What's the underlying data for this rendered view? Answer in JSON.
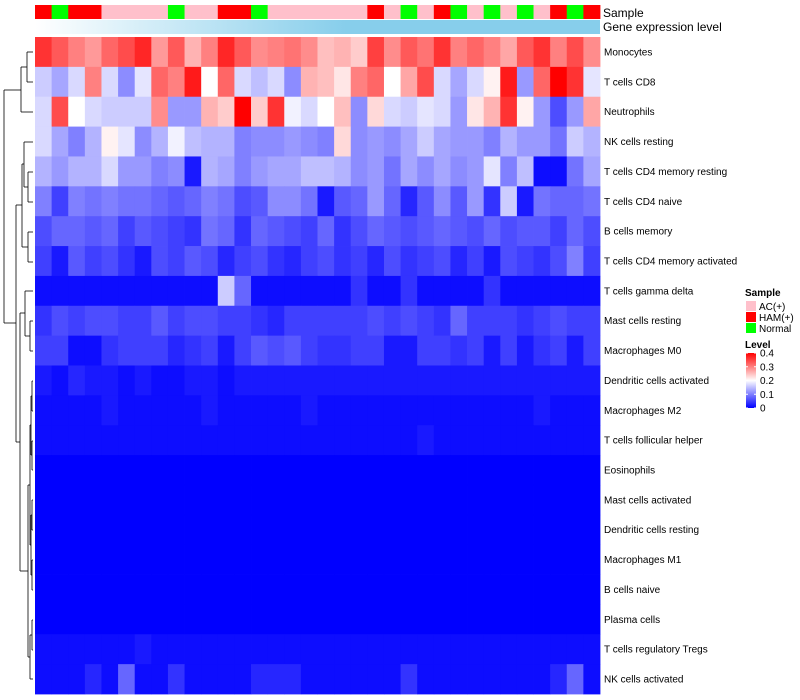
{
  "chart_data": {
    "type": "heatmap",
    "annotation_rows": [
      "Sample",
      "Gene expression level"
    ],
    "sample_groups": [
      "HAM(+)",
      "Normal",
      "HAM(+)",
      "HAM(+)",
      "AC(+)",
      "AC(+)",
      "AC(+)",
      "AC(+)",
      "Normal",
      "AC(+)",
      "AC(+)",
      "HAM(+)",
      "HAM(+)",
      "Normal",
      "AC(+)",
      "AC(+)",
      "AC(+)",
      "AC(+)",
      "AC(+)",
      "AC(+)",
      "HAM(+)",
      "AC(+)",
      "Normal",
      "AC(+)",
      "HAM(+)",
      "Normal",
      "AC(+)",
      "Normal",
      "AC(+)",
      "Normal",
      "AC(+)",
      "HAM(+)",
      "Normal",
      "HAM(+)"
    ],
    "rows": [
      "Monocytes",
      "T cells CD8",
      "Neutrophils",
      "NK cells resting",
      "T cells CD4 memory resting",
      "T cells CD4 naive",
      "B cells memory",
      "T cells CD4 memory activated",
      "T cells gamma delta",
      "Mast cells resting",
      "Macrophages M0",
      "Dendritic cells activated",
      "Macrophages M2",
      "T cells follicular helper",
      "Eosinophils",
      "Mast cells activated",
      "Dendritic cells resting",
      "Macrophages M1",
      "B cells naive",
      "Plasma cells",
      "T cells regulatory  Tregs",
      "NK cells activated"
    ],
    "values": [
      [
        0.36,
        0.33,
        0.3,
        0.28,
        0.32,
        0.34,
        0.37,
        0.28,
        0.33,
        0.26,
        0.3,
        0.37,
        0.33,
        0.29,
        0.3,
        0.31,
        0.29,
        0.25,
        0.26,
        0.24,
        0.35,
        0.29,
        0.33,
        0.31,
        0.36,
        0.3,
        0.32,
        0.3,
        0.27,
        0.33,
        0.36,
        0.3,
        0.34,
        0.29
      ],
      [
        0.16,
        0.13,
        0.17,
        0.3,
        0.17,
        0.11,
        0.18,
        0.32,
        0.3,
        0.38,
        0.2,
        0.32,
        0.17,
        0.15,
        0.17,
        0.11,
        0.26,
        0.25,
        0.22,
        0.3,
        0.32,
        0.2,
        0.27,
        0.34,
        0.17,
        0.13,
        0.17,
        0.21,
        0.38,
        0.12,
        0.32,
        0.4,
        0.36,
        0.18
      ],
      [
        0.17,
        0.34,
        0.2,
        0.17,
        0.16,
        0.16,
        0.16,
        0.29,
        0.12,
        0.12,
        0.26,
        0.24,
        0.4,
        0.24,
        0.36,
        0.19,
        0.17,
        0.2,
        0.25,
        0.11,
        0.23,
        0.17,
        0.16,
        0.18,
        0.17,
        0.12,
        0.22,
        0.26,
        0.36,
        0.21,
        0.12,
        0.06,
        0.12,
        0.27
      ],
      [
        0.17,
        0.13,
        0.1,
        0.14,
        0.21,
        0.18,
        0.11,
        0.14,
        0.19,
        0.15,
        0.14,
        0.14,
        0.1,
        0.11,
        0.11,
        0.12,
        0.11,
        0.1,
        0.23,
        0.11,
        0.12,
        0.11,
        0.13,
        0.16,
        0.13,
        0.12,
        0.12,
        0.1,
        0.14,
        0.12,
        0.12,
        0.09,
        0.16,
        0.14
      ],
      [
        0.14,
        0.12,
        0.14,
        0.14,
        0.17,
        0.12,
        0.12,
        0.1,
        0.11,
        0.02,
        0.14,
        0.13,
        0.1,
        0.12,
        0.13,
        0.13,
        0.15,
        0.15,
        0.14,
        0.11,
        0.12,
        0.09,
        0.13,
        0.11,
        0.13,
        0.11,
        0.12,
        0.18,
        0.1,
        0.15,
        0.01,
        0.01,
        0.09,
        0.13
      ],
      [
        0.1,
        0.05,
        0.1,
        0.09,
        0.1,
        0.09,
        0.09,
        0.08,
        0.07,
        0.08,
        0.1,
        0.09,
        0.06,
        0.07,
        0.11,
        0.11,
        0.09,
        0.02,
        0.07,
        0.08,
        0.12,
        0.08,
        0.03,
        0.07,
        0.11,
        0.07,
        0.12,
        0.04,
        0.16,
        0.02,
        0.09,
        0.08,
        0.08,
        0.09
      ],
      [
        0.06,
        0.08,
        0.08,
        0.07,
        0.08,
        0.05,
        0.07,
        0.06,
        0.05,
        0.04,
        0.09,
        0.08,
        0.04,
        0.08,
        0.07,
        0.06,
        0.05,
        0.08,
        0.04,
        0.06,
        0.08,
        0.07,
        0.06,
        0.07,
        0.08,
        0.07,
        0.06,
        0.08,
        0.06,
        0.07,
        0.07,
        0.05,
        0.08,
        0.06
      ],
      [
        0.05,
        0.02,
        0.07,
        0.05,
        0.06,
        0.04,
        0.02,
        0.06,
        0.05,
        0.07,
        0.06,
        0.03,
        0.05,
        0.06,
        0.04,
        0.03,
        0.05,
        0.06,
        0.04,
        0.05,
        0.03,
        0.06,
        0.04,
        0.05,
        0.06,
        0.03,
        0.05,
        0.02,
        0.06,
        0.05,
        0.04,
        0.06,
        0.1,
        0.05
      ],
      [
        0.01,
        0.01,
        0.01,
        0.01,
        0.01,
        0.01,
        0.01,
        0.01,
        0.01,
        0.01,
        0.01,
        0.16,
        0.08,
        0.01,
        0.01,
        0.01,
        0.01,
        0.01,
        0.01,
        0.04,
        0.01,
        0.01,
        0.04,
        0.01,
        0.01,
        0.01,
        0.01,
        0.04,
        0.01,
        0.01,
        0.01,
        0.01,
        0.01,
        0.01
      ],
      [
        0.04,
        0.06,
        0.05,
        0.06,
        0.06,
        0.05,
        0.05,
        0.07,
        0.05,
        0.06,
        0.06,
        0.05,
        0.05,
        0.04,
        0.03,
        0.05,
        0.05,
        0.05,
        0.05,
        0.05,
        0.06,
        0.05,
        0.06,
        0.05,
        0.04,
        0.08,
        0.05,
        0.05,
        0.05,
        0.04,
        0.05,
        0.06,
        0.05,
        0.05
      ],
      [
        0.05,
        0.05,
        0.01,
        0.01,
        0.04,
        0.05,
        0.05,
        0.05,
        0.03,
        0.04,
        0.05,
        0.02,
        0.05,
        0.07,
        0.06,
        0.07,
        0.05,
        0.04,
        0.04,
        0.05,
        0.05,
        0.02,
        0.02,
        0.05,
        0.05,
        0.04,
        0.05,
        0.02,
        0.05,
        0.02,
        0.04,
        0.05,
        0.02,
        0.05
      ],
      [
        0.02,
        0.01,
        0.03,
        0.02,
        0.02,
        0.01,
        0.02,
        0.01,
        0.01,
        0.02,
        0.02,
        0.01,
        0.02,
        0.02,
        0.02,
        0.02,
        0.02,
        0.02,
        0.02,
        0.02,
        0.02,
        0.02,
        0.02,
        0.02,
        0.02,
        0.02,
        0.02,
        0.02,
        0.02,
        0.02,
        0.02,
        0.02,
        0.02,
        0.02
      ],
      [
        0.01,
        0.01,
        0.01,
        0.01,
        0.02,
        0.01,
        0.01,
        0.01,
        0.01,
        0.01,
        0.02,
        0.01,
        0.01,
        0.01,
        0.01,
        0.01,
        0.02,
        0.01,
        0.01,
        0.01,
        0.01,
        0.01,
        0.01,
        0.01,
        0.01,
        0.01,
        0.01,
        0.01,
        0.01,
        0.01,
        0.02,
        0.01,
        0.01,
        0.01
      ],
      [
        0.01,
        0.01,
        0.01,
        0.01,
        0.01,
        0.01,
        0.01,
        0.01,
        0.01,
        0.01,
        0.01,
        0.01,
        0.01,
        0.01,
        0.01,
        0.01,
        0.01,
        0.01,
        0.01,
        0.01,
        0.01,
        0.01,
        0.01,
        0.02,
        0.01,
        0.01,
        0.01,
        0.01,
        0.01,
        0.01,
        0.01,
        0.01,
        0.01,
        0.01
      ],
      [
        0,
        0,
        0,
        0,
        0,
        0,
        0,
        0,
        0,
        0,
        0,
        0,
        0,
        0,
        0,
        0,
        0,
        0,
        0,
        0,
        0,
        0,
        0,
        0,
        0,
        0,
        0,
        0,
        0,
        0,
        0,
        0,
        0,
        0
      ],
      [
        0,
        0,
        0,
        0,
        0,
        0,
        0,
        0,
        0,
        0,
        0,
        0,
        0,
        0,
        0,
        0,
        0,
        0,
        0,
        0,
        0,
        0,
        0,
        0,
        0,
        0,
        0,
        0,
        0,
        0,
        0,
        0,
        0,
        0
      ],
      [
        0,
        0,
        0,
        0,
        0,
        0,
        0,
        0,
        0,
        0,
        0,
        0,
        0,
        0,
        0,
        0,
        0,
        0,
        0,
        0,
        0,
        0,
        0,
        0,
        0,
        0,
        0,
        0,
        0,
        0,
        0,
        0,
        0,
        0
      ],
      [
        0,
        0,
        0,
        0,
        0,
        0,
        0,
        0,
        0,
        0,
        0,
        0,
        0,
        0,
        0,
        0,
        0,
        0,
        0,
        0,
        0,
        0,
        0,
        0,
        0,
        0,
        0,
        0,
        0,
        0,
        0,
        0,
        0,
        0
      ],
      [
        0,
        0,
        0,
        0,
        0,
        0,
        0,
        0,
        0,
        0,
        0,
        0,
        0,
        0,
        0,
        0,
        0,
        0,
        0,
        0,
        0,
        0,
        0,
        0,
        0,
        0,
        0,
        0,
        0,
        0,
        0,
        0,
        0,
        0
      ],
      [
        0,
        0,
        0,
        0,
        0,
        0,
        0,
        0,
        0,
        0,
        0,
        0,
        0,
        0,
        0,
        0,
        0,
        0,
        0,
        0,
        0,
        0,
        0,
        0,
        0,
        0,
        0,
        0,
        0,
        0,
        0,
        0,
        0,
        0
      ],
      [
        0.01,
        0.01,
        0.01,
        0.01,
        0.01,
        0.01,
        0.02,
        0.01,
        0.01,
        0.01,
        0.01,
        0.01,
        0.01,
        0.01,
        0.01,
        0.01,
        0.01,
        0.01,
        0.01,
        0.01,
        0.01,
        0.01,
        0.01,
        0.01,
        0.01,
        0.01,
        0.01,
        0.01,
        0.01,
        0.01,
        0.01,
        0.01,
        0.01,
        0.01
      ],
      [
        0.01,
        0.01,
        0.01,
        0.03,
        0.01,
        0.08,
        0.01,
        0.01,
        0.04,
        0.01,
        0.01,
        0.01,
        0.01,
        0.03,
        0.03,
        0.03,
        0.01,
        0.01,
        0.01,
        0.01,
        0.01,
        0.01,
        0.04,
        0.01,
        0.01,
        0.01,
        0.01,
        0.01,
        0.01,
        0.01,
        0.01,
        0.03,
        0.08,
        0.01
      ]
    ],
    "legend": {
      "sample_title": "Sample",
      "sample_entries": [
        {
          "label": "AC(+)",
          "color": "#FFC0CB"
        },
        {
          "label": "HAM(+)",
          "color": "#FF0000"
        },
        {
          "label": "Normal",
          "color": "#00FF00"
        }
      ],
      "level_title": "Level",
      "level_ticks": [
        "0.4",
        "0.3",
        "0.2",
        "0.1",
        "0"
      ],
      "level_values": [
        0.4,
        0.3,
        0.2,
        0.1,
        0
      ]
    },
    "colors": {
      "low": "#0000FF",
      "mid": "#FFFFFF",
      "high": "#FF0000",
      "expression_bar": "#87CEEB"
    },
    "scale": {
      "min": 0,
      "mid": 0.2,
      "max": 0.4
    }
  }
}
